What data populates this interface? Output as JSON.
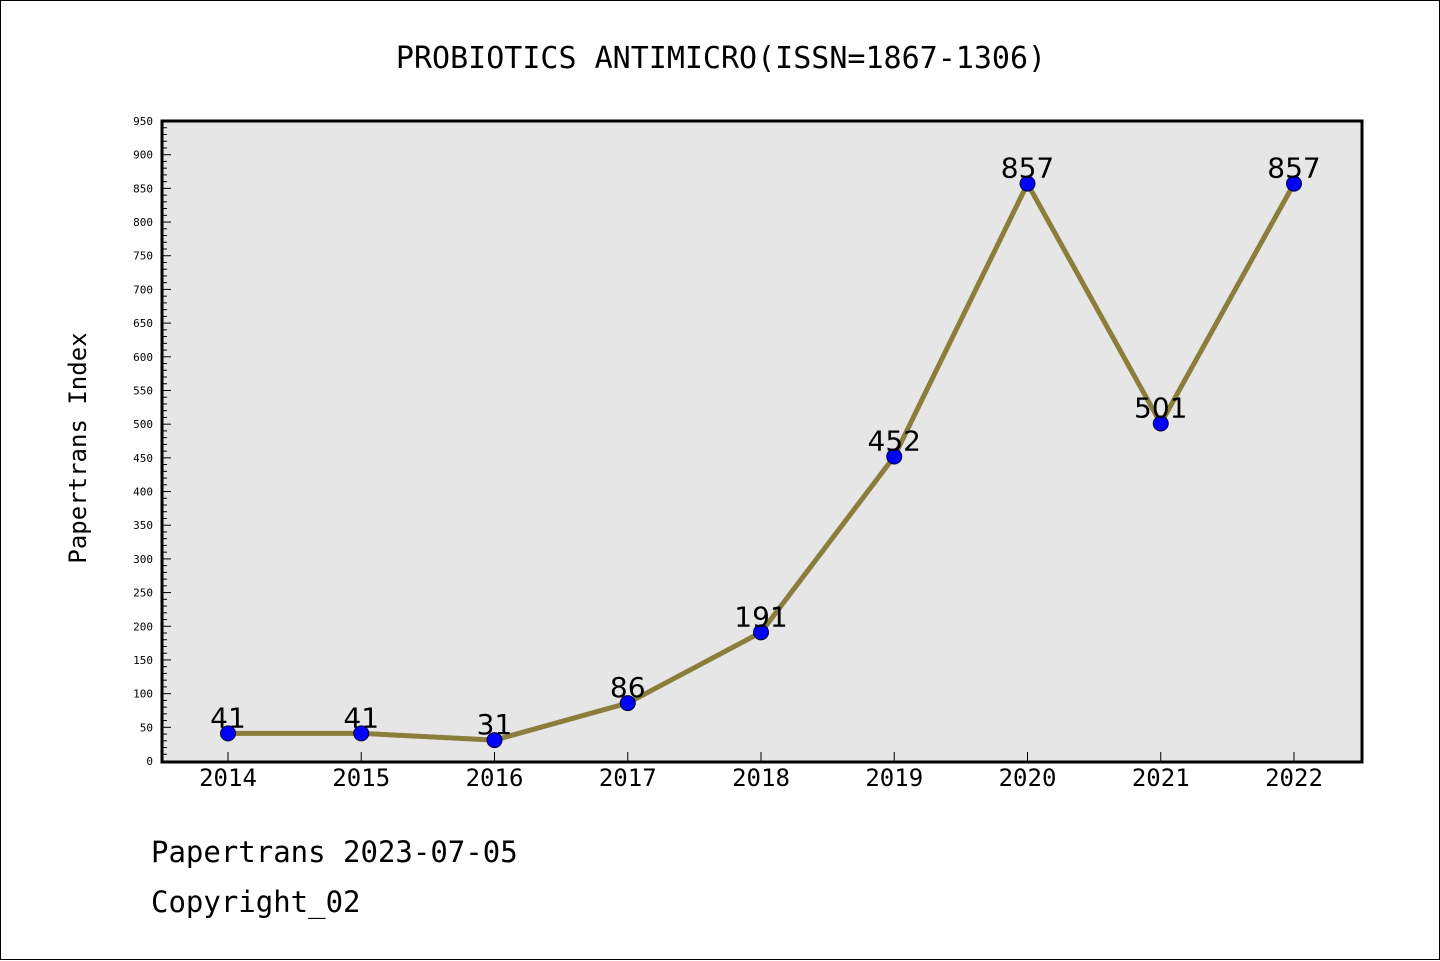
{
  "chart_data": {
    "type": "line",
    "title": "PROBIOTICS ANTIMICRO(ISSN=1867-1306)",
    "xlabel": "",
    "ylabel": "Papertrans Index",
    "categories": [
      "2014",
      "2015",
      "2016",
      "2017",
      "2018",
      "2019",
      "2020",
      "2021",
      "2022"
    ],
    "series": [
      {
        "values": [
          41,
          41,
          31,
          86,
          191,
          452,
          857,
          501,
          857
        ]
      }
    ],
    "data_labels": [
      "41",
      "41",
      "31",
      "86",
      "191",
      "452",
      "857",
      "501",
      "857"
    ],
    "ylim": [
      0,
      950
    ],
    "y_ticks": [
      "0",
      "50",
      "100",
      "150",
      "200",
      "250",
      "300",
      "350",
      "400",
      "450",
      "500",
      "550",
      "600",
      "650",
      "700",
      "750",
      "800",
      "850",
      "900",
      "950"
    ],
    "grid": false,
    "legend": "none",
    "colors": {
      "line": "#8b7d3a",
      "marker": "#0000ff",
      "plot_background": "#e6e6e6"
    }
  },
  "footer": {
    "date_line": "Papertrans 2023-07-05",
    "copyright": "Copyright_02"
  }
}
